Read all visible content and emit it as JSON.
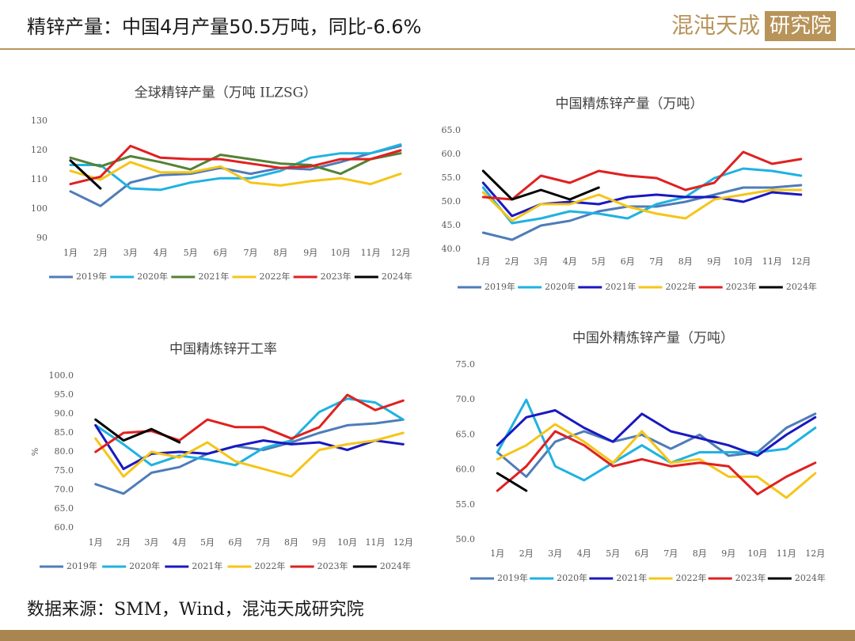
{
  "title": "精锌产量：中国4月产量50.5万吨，同比-6.6%",
  "logo": [
    "混沌天成",
    "研究院"
  ],
  "source": "数据来源：SMM，Wind，混沌天成研究院",
  "chart_data": [
    {
      "type": "line",
      "title": "全球精锌产量（万吨 ILZSG）",
      "categories": [
        "1月",
        "2月",
        "3月",
        "4月",
        "5月",
        "6月",
        "7月",
        "8月",
        "9月",
        "10月",
        "11月",
        "12月"
      ],
      "ylim": [
        90,
        130
      ],
      "yticks": [
        90,
        100,
        110,
        120,
        130
      ],
      "series": [
        {
          "name": "2019年",
          "color": "#4f7cb8",
          "values": [
            106,
            101,
            109,
            111.5,
            112,
            114,
            112,
            114,
            113.5,
            116,
            119,
            121.5
          ]
        },
        {
          "name": "2020年",
          "color": "#1fb2e2",
          "values": [
            115,
            115,
            107,
            106.5,
            109,
            110.5,
            110.5,
            113,
            117.5,
            119,
            119,
            122
          ]
        },
        {
          "name": "2021年",
          "color": "#548235",
          "values": [
            117.5,
            114.5,
            118,
            116,
            113.5,
            118.5,
            117,
            115.5,
            115,
            112,
            117,
            119
          ]
        },
        {
          "name": "2022年",
          "color": "#f5c518",
          "values": [
            113,
            110,
            116,
            112.5,
            112.5,
            114.5,
            109,
            108,
            109.5,
            110.5,
            108.5,
            112
          ]
        },
        {
          "name": "2023年",
          "color": "#e02020",
          "values": [
            108.5,
            111,
            121.5,
            117.5,
            117,
            117,
            115.5,
            114,
            114.5,
            117,
            117,
            120
          ]
        },
        {
          "name": "2024年",
          "color": "#000000",
          "values": [
            116.5,
            107,
            null,
            null,
            null,
            null,
            null,
            null,
            null,
            null,
            null,
            null
          ]
        }
      ]
    },
    {
      "type": "line",
      "title": "中国精炼锌产量（万吨）",
      "categories": [
        "1月",
        "2月",
        "3月",
        "4月",
        "5月",
        "6月",
        "7月",
        "8月",
        "9月",
        "10月",
        "11月",
        "12月"
      ],
      "ylim": [
        40,
        65
      ],
      "yticks": [
        {
          "value": 40,
          "label": "40.0"
        },
        {
          "value": 45,
          "label": "45.0"
        },
        {
          "value": 50,
          "label": "50.0"
        },
        {
          "value": 55,
          "label": "55.0"
        },
        {
          "value": 60,
          "label": "60.0"
        },
        {
          "value": 65,
          "label": "65.0"
        }
      ],
      "series": [
        {
          "name": "2019年",
          "color": "#4f7cb8",
          "values": [
            43.5,
            42,
            45,
            46,
            48,
            49,
            49,
            50,
            51.5,
            53,
            53,
            53.5
          ]
        },
        {
          "name": "2020年",
          "color": "#1fb2e2",
          "values": [
            53,
            45.5,
            46.5,
            48,
            47.5,
            46.5,
            49.5,
            51,
            55,
            57,
            56.5,
            55.5
          ]
        },
        {
          "name": "2021年",
          "color": "#1a18c0",
          "values": [
            54,
            47,
            49.5,
            50,
            49.5,
            51,
            51.5,
            51,
            51,
            50,
            52,
            51.5
          ]
        },
        {
          "name": "2022年",
          "color": "#f5c518",
          "values": [
            52,
            46,
            49.5,
            49.5,
            51.5,
            49,
            47.5,
            46.5,
            50.5,
            51.5,
            52.5,
            52.5
          ]
        },
        {
          "name": "2023年",
          "color": "#e02020",
          "values": [
            51,
            50.5,
            55.5,
            54,
            56.5,
            55.5,
            55,
            52.5,
            54,
            60.5,
            58,
            59
          ]
        },
        {
          "name": "2024年",
          "color": "#000000",
          "values": [
            56.5,
            50.5,
            52.5,
            50.5,
            53,
            null,
            null,
            null,
            null,
            null,
            null,
            null
          ]
        }
      ]
    },
    {
      "type": "line",
      "title": "中国精炼锌开工率",
      "y_label": "%",
      "categories": [
        "1月",
        "2月",
        "3月",
        "4月",
        "5月",
        "6月",
        "7月",
        "8月",
        "9月",
        "10月",
        "11月",
        "12月"
      ],
      "ylim": [
        60,
        100
      ],
      "yticks": [
        {
          "value": 60,
          "label": "60.0"
        },
        {
          "value": 65,
          "label": "65.0"
        },
        {
          "value": 70,
          "label": "70.0"
        },
        {
          "value": 75,
          "label": "75.0"
        },
        {
          "value": 80,
          "label": "80.0"
        },
        {
          "value": 85,
          "label": "85.0"
        },
        {
          "value": 90,
          "label": "90.0"
        },
        {
          "value": 95,
          "label": "95.0"
        },
        {
          "value": 100,
          "label": "100.0"
        }
      ],
      "series": [
        {
          "name": "2019年",
          "color": "#4f7cb8",
          "values": [
            71.5,
            69,
            74.5,
            76,
            79.5,
            81.5,
            80.5,
            82.5,
            85,
            87,
            87.5,
            88.5
          ]
        },
        {
          "name": "2020年",
          "color": "#1fb2e2",
          "values": [
            87,
            82,
            76.5,
            79,
            78,
            76.5,
            81,
            83,
            90.5,
            94,
            93,
            88.5
          ]
        },
        {
          "name": "2021年",
          "color": "#1a18c0",
          "values": [
            87,
            75.5,
            79.5,
            80,
            79.5,
            81.5,
            83,
            82,
            82.5,
            80.5,
            83,
            82
          ]
        },
        {
          "name": "2022年",
          "color": "#f5c518",
          "values": [
            83.5,
            73.5,
            80,
            78.5,
            82.5,
            77.5,
            75.5,
            73.5,
            80.5,
            82,
            83,
            85
          ]
        },
        {
          "name": "2023年",
          "color": "#e02020",
          "values": [
            80,
            85,
            85.5,
            83,
            88.5,
            86.5,
            86.5,
            83.5,
            86.5,
            95,
            91,
            93.5
          ]
        },
        {
          "name": "2024年",
          "color": "#000000",
          "values": [
            88.5,
            83,
            86,
            82.5,
            null,
            null,
            null,
            null,
            null,
            null,
            null,
            null
          ]
        }
      ]
    },
    {
      "type": "line",
      "title": "中国外精炼锌产量（万吨）",
      "categories": [
        "1月",
        "2月",
        "3月",
        "4月",
        "5月",
        "6月",
        "7月",
        "8月",
        "9月",
        "10月",
        "11月",
        "12月"
      ],
      "ylim": [
        50,
        75
      ],
      "yticks": [
        {
          "value": 50,
          "label": "50.0"
        },
        {
          "value": 55,
          "label": "55.0"
        },
        {
          "value": 60,
          "label": "60.0"
        },
        {
          "value": 65,
          "label": "65.0"
        },
        {
          "value": 70,
          "label": "70.0"
        },
        {
          "value": 75,
          "label": "75.0"
        }
      ],
      "series": [
        {
          "name": "2019年",
          "color": "#4f7cb8",
          "values": [
            62.5,
            59,
            64,
            65.5,
            64,
            65,
            63,
            65,
            62,
            62.5,
            66,
            68
          ]
        },
        {
          "name": "2020年",
          "color": "#1fb2e2",
          "values": [
            62.5,
            70,
            60.5,
            58.5,
            61,
            63.5,
            61,
            62.5,
            62.5,
            62.5,
            63,
            66
          ]
        },
        {
          "name": "2021年",
          "color": "#1a18c0",
          "values": [
            63.5,
            67.5,
            68.5,
            66,
            64,
            68,
            65.5,
            64.5,
            63.5,
            62,
            65,
            67.5
          ]
        },
        {
          "name": "2022年",
          "color": "#f5c518",
          "values": [
            61.5,
            63.5,
            66.5,
            64,
            61,
            65.5,
            61,
            61.5,
            59,
            59,
            56,
            59.5
          ]
        },
        {
          "name": "2023年",
          "color": "#e02020",
          "values": [
            57,
            60.5,
            65.5,
            63.5,
            60.5,
            61.5,
            60.5,
            61,
            60.5,
            56.5,
            59,
            61
          ]
        },
        {
          "name": "2024年",
          "color": "#000000",
          "values": [
            59.5,
            57,
            null,
            null,
            null,
            null,
            null,
            null,
            null,
            null,
            null,
            null
          ]
        }
      ]
    }
  ]
}
